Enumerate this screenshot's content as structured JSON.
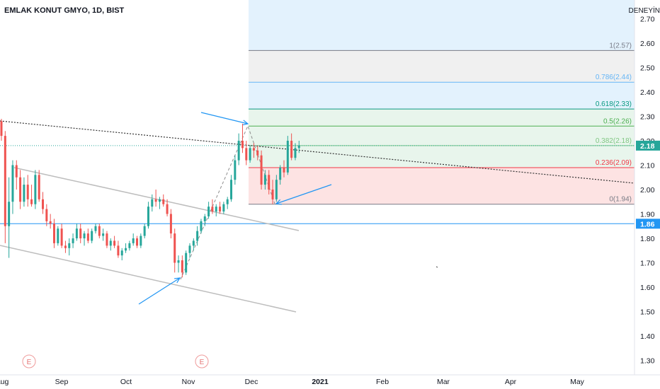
{
  "header": {
    "title": "EMLAK KONUT GMYO, 1D, BIST",
    "corner_label": "DENEYİN"
  },
  "colors": {
    "up": "#26a69a",
    "down": "#ef5350",
    "blue": "#2196f3",
    "zone_blue": "#e3f2fd",
    "zone_gray": "#eeeeee",
    "zone_green": "#e6f4ea",
    "zone_red": "#fde0e0"
  },
  "chart_data": {
    "type": "candlestick",
    "symbol": "EMLAK KONUT GMYO",
    "interval": "1D",
    "exchange": "BIST",
    "ylim": [
      1.25,
      2.73
    ],
    "y_ticks": [
      "2.70",
      "2.60",
      "2.50",
      "2.40",
      "2.30",
      "2.20",
      "2.10",
      "2.00",
      "1.90",
      "1.80",
      "1.70",
      "1.60",
      "1.50",
      "1.40",
      "1.30"
    ],
    "x_ticks": [
      "Aug",
      "Sep",
      "Oct",
      "Nov",
      "Dec",
      "2021",
      "Feb",
      "Mar",
      "Apr",
      "May"
    ],
    "price_labels": {
      "last": "2.18",
      "horizontal_line": "1.86"
    },
    "fib_levels": [
      {
        "ratio": 1,
        "price": 2.57,
        "label": "1(2.57)",
        "color": "#787b86"
      },
      {
        "ratio": 0.786,
        "price": 2.44,
        "label": "0.786(2.44)",
        "color": "#64b5f6"
      },
      {
        "ratio": 0.618,
        "price": 2.33,
        "label": "0.618(2.33)",
        "color": "#089981"
      },
      {
        "ratio": 0.5,
        "price": 2.26,
        "label": "0.5(2.26)",
        "color": "#4caf50"
      },
      {
        "ratio": 0.382,
        "price": 2.18,
        "label": "0.382(2.18)",
        "color": "#81c784"
      },
      {
        "ratio": 0.236,
        "price": 2.09,
        "label": "0.236(2.09)",
        "color": "#f23645"
      },
      {
        "ratio": 0,
        "price": 1.94,
        "label": "0(1.94)",
        "color": "#787b86"
      }
    ],
    "event_markers": [
      "E",
      "E"
    ],
    "candles": [
      [
        2.28,
        2.29,
        2.2,
        2.22
      ],
      [
        2.22,
        2.24,
        1.78,
        1.85
      ],
      [
        1.85,
        2.05,
        1.72,
        1.95
      ],
      [
        1.95,
        2.12,
        1.9,
        2.1
      ],
      [
        2.1,
        2.12,
        2.0,
        2.05
      ],
      [
        2.05,
        2.08,
        1.92,
        1.95
      ],
      [
        1.95,
        2.05,
        1.93,
        2.02
      ],
      [
        2.02,
        2.06,
        1.93,
        1.96
      ],
      [
        1.96,
        2.02,
        1.93,
        1.94
      ],
      [
        1.94,
        2.08,
        1.92,
        2.06
      ],
      [
        2.06,
        2.08,
        1.95,
        1.96
      ],
      [
        1.96,
        1.99,
        1.9,
        1.92
      ],
      [
        1.92,
        1.94,
        1.85,
        1.87
      ],
      [
        1.87,
        1.9,
        1.84,
        1.86
      ],
      [
        1.86,
        1.88,
        1.76,
        1.78
      ],
      [
        1.78,
        1.85,
        1.77,
        1.84
      ],
      [
        1.84,
        1.86,
        1.76,
        1.77
      ],
      [
        1.77,
        1.79,
        1.74,
        1.76
      ],
      [
        1.76,
        1.8,
        1.73,
        1.78
      ],
      [
        1.78,
        1.82,
        1.76,
        1.8
      ],
      [
        1.8,
        1.86,
        1.79,
        1.84
      ],
      [
        1.84,
        1.86,
        1.78,
        1.8
      ],
      [
        1.8,
        1.83,
        1.77,
        1.82
      ],
      [
        1.82,
        1.84,
        1.78,
        1.79
      ],
      [
        1.79,
        1.84,
        1.78,
        1.83
      ],
      [
        1.83,
        1.86,
        1.82,
        1.85
      ],
      [
        1.85,
        1.86,
        1.8,
        1.81
      ],
      [
        1.81,
        1.84,
        1.79,
        1.82
      ],
      [
        1.82,
        1.83,
        1.76,
        1.77
      ],
      [
        1.77,
        1.8,
        1.75,
        1.79
      ],
      [
        1.79,
        1.81,
        1.76,
        1.77
      ],
      [
        1.77,
        1.79,
        1.72,
        1.73
      ],
      [
        1.73,
        1.76,
        1.71,
        1.75
      ],
      [
        1.75,
        1.78,
        1.74,
        1.76
      ],
      [
        1.76,
        1.79,
        1.75,
        1.78
      ],
      [
        1.78,
        1.82,
        1.77,
        1.8
      ],
      [
        1.8,
        1.81,
        1.76,
        1.77
      ],
      [
        1.77,
        1.82,
        1.76,
        1.81
      ],
      [
        1.81,
        1.86,
        1.8,
        1.85
      ],
      [
        1.85,
        1.95,
        1.84,
        1.93
      ],
      [
        1.93,
        1.98,
        1.91,
        1.96
      ],
      [
        1.96,
        2.0,
        1.93,
        1.95
      ],
      [
        1.95,
        1.97,
        1.92,
        1.96
      ],
      [
        1.96,
        1.98,
        1.93,
        1.94
      ],
      [
        1.94,
        1.96,
        1.89,
        1.9
      ],
      [
        1.9,
        1.92,
        1.8,
        1.82
      ],
      [
        1.82,
        1.84,
        1.66,
        1.7
      ],
      [
        1.7,
        1.73,
        1.66,
        1.71
      ],
      [
        1.71,
        1.73,
        1.64,
        1.66
      ],
      [
        1.66,
        1.75,
        1.65,
        1.74
      ],
      [
        1.74,
        1.78,
        1.72,
        1.77
      ],
      [
        1.77,
        1.8,
        1.75,
        1.79
      ],
      [
        1.79,
        1.85,
        1.77,
        1.83
      ],
      [
        1.83,
        1.88,
        1.82,
        1.87
      ],
      [
        1.87,
        1.9,
        1.85,
        1.89
      ],
      [
        1.89,
        1.95,
        1.88,
        1.93
      ],
      [
        1.93,
        1.96,
        1.9,
        1.91
      ],
      [
        1.91,
        1.94,
        1.89,
        1.93
      ],
      [
        1.93,
        1.95,
        1.9,
        1.91
      ],
      [
        1.91,
        1.95,
        1.9,
        1.94
      ],
      [
        1.94,
        1.97,
        1.92,
        1.96
      ],
      [
        1.96,
        2.06,
        1.95,
        2.04
      ],
      [
        2.04,
        2.14,
        2.02,
        2.12
      ],
      [
        2.12,
        2.23,
        2.1,
        2.2
      ],
      [
        2.2,
        2.27,
        2.15,
        2.17
      ],
      [
        2.17,
        2.2,
        2.1,
        2.12
      ],
      [
        2.12,
        2.18,
        2.11,
        2.17
      ],
      [
        2.17,
        2.19,
        2.13,
        2.16
      ],
      [
        2.16,
        2.18,
        2.12,
        2.14
      ],
      [
        2.14,
        2.16,
        2.0,
        2.02
      ],
      [
        2.02,
        2.08,
        2.0,
        2.06
      ],
      [
        2.06,
        2.08,
        1.98,
        2.0
      ],
      [
        2.0,
        2.04,
        1.94,
        1.96
      ],
      [
        1.96,
        2.06,
        1.95,
        2.04
      ],
      [
        2.04,
        2.1,
        2.02,
        2.09
      ],
      [
        2.09,
        2.12,
        2.05,
        2.07
      ],
      [
        2.07,
        2.22,
        2.06,
        2.2
      ],
      [
        2.2,
        2.23,
        2.12,
        2.13
      ],
      [
        2.13,
        2.19,
        2.12,
        2.17
      ],
      [
        2.17,
        2.2,
        2.15,
        2.18
      ]
    ]
  }
}
